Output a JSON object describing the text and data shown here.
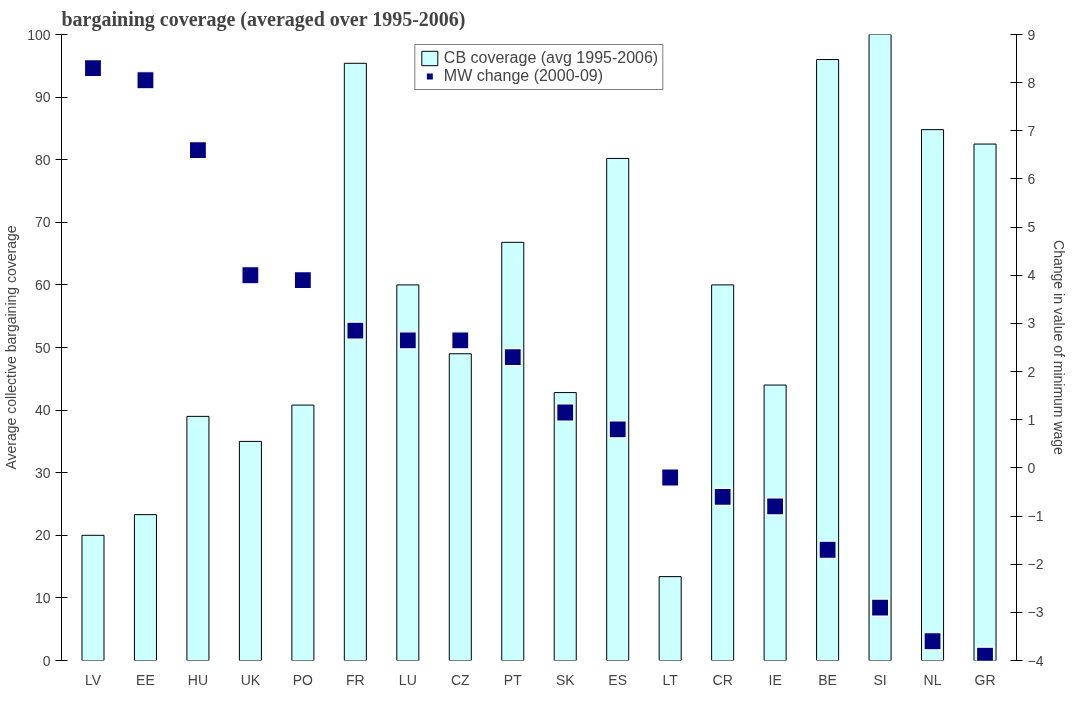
{
  "chart_data": {
    "type": "bar",
    "title": "bargaining coverage (averaged over 1995-2006)",
    "ylabel": "Average collective bargaining coverage",
    "y2label": "Change in value of minimum wage",
    "categories": [
      "LV",
      "EE",
      "HU",
      "UK",
      "PO",
      "FR",
      "LU",
      "CZ",
      "PT",
      "SK",
      "ES",
      "LT",
      "CR",
      "IE",
      "BE",
      "SI",
      "NL",
      "GR"
    ],
    "series": [
      {
        "name": "CB coverage (avg 1995-2006)",
        "color": "#ccffff",
        "values": [
          20,
          23.3,
          39,
          35,
          40.8,
          95.4,
          60,
          49,
          66.8,
          42.8,
          80.2,
          13.4,
          60,
          44,
          96,
          100,
          84.8,
          82.5
        ]
      },
      {
        "name": "MW change (2000-09)",
        "type": "scatter",
        "axis": "y2",
        "color": "#000080",
        "marker": "square",
        "values": [
          8.3,
          8.05,
          6.6,
          4.0,
          3.9,
          2.85,
          2.65,
          2.65,
          2.3,
          1.15,
          0.8,
          -0.2,
          -0.6,
          -0.8,
          -1.7,
          -2.9,
          -3.6,
          -3.9
        ]
      }
    ],
    "ylim": [
      0,
      100
    ],
    "yticks": [
      0,
      10,
      20,
      30,
      40,
      50,
      60,
      70,
      80,
      90,
      100
    ],
    "y2lim": [
      -4,
      9
    ],
    "y2ticks": [
      -4,
      -3,
      -2,
      -1,
      0,
      1,
      2,
      3,
      4,
      5,
      6,
      7,
      8,
      9
    ],
    "grid": false,
    "legend": "top"
  }
}
